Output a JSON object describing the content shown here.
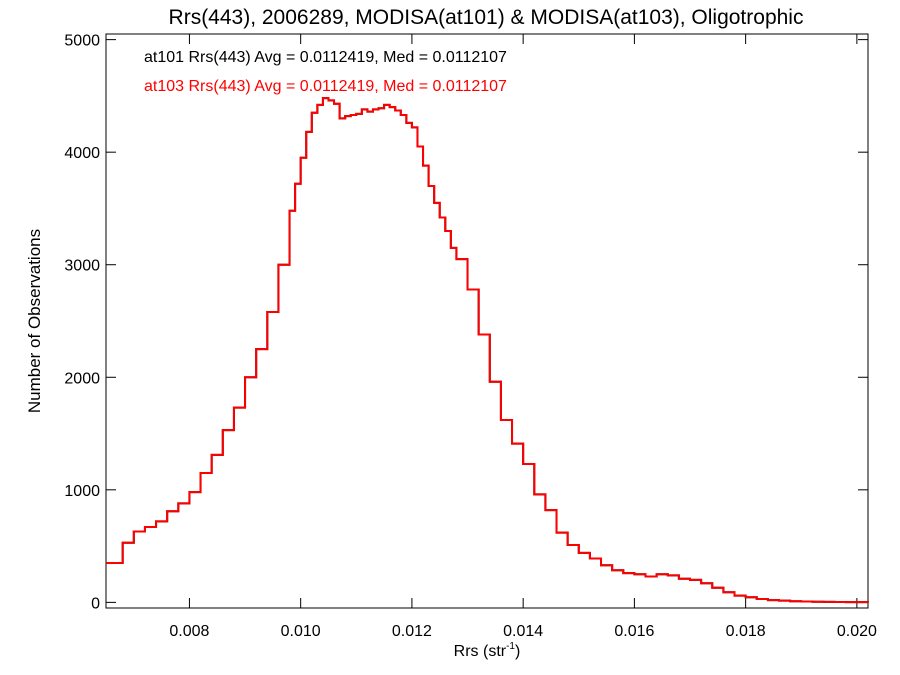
{
  "chart_data": {
    "type": "line",
    "title": "Rrs(443), 2006289, MODISA(at101) & MODISA(at103), Oligotrophic",
    "xlabel": "Rrs (str",
    "xlabel_superscript": "-1",
    "xlabel_close": ")",
    "ylabel": "Number of Observations",
    "xlim": [
      0.0065,
      0.0202
    ],
    "ylim": [
      -50,
      5050
    ],
    "xticks": [
      0.008,
      0.01,
      0.012,
      0.014,
      0.016,
      0.018,
      0.02
    ],
    "xtick_labels": [
      "0.008",
      "0.010",
      "0.012",
      "0.014",
      "0.016",
      "0.018",
      "0.020"
    ],
    "yticks": [
      0,
      1000,
      2000,
      3000,
      4000,
      5000
    ],
    "ytick_labels": [
      "0",
      "1000",
      "2000",
      "3000",
      "4000",
      "5000"
    ],
    "grid": false,
    "annotations": [
      {
        "text": "at101 Rrs(443) Avg = 0.0112419, Med = 0.0112107",
        "color": "#000000"
      },
      {
        "text": "at103 Rrs(443) Avg = 0.0112419, Med = 0.0112107",
        "color": "#ff0000"
      }
    ],
    "series": [
      {
        "color": "#000000",
        "x": [
          0.0065,
          0.0068,
          0.007,
          0.0072,
          0.0074,
          0.0076,
          0.0078,
          0.008,
          0.0082,
          0.0084,
          0.0086,
          0.0088,
          0.009,
          0.0092,
          0.0094,
          0.0096,
          0.0098,
          0.0099,
          0.01,
          0.0101,
          0.0102,
          0.0103,
          0.0104,
          0.0105,
          0.0106,
          0.0107,
          0.0108,
          0.0109,
          0.011,
          0.0111,
          0.0112,
          0.0113,
          0.0114,
          0.0115,
          0.0116,
          0.0117,
          0.0118,
          0.0119,
          0.012,
          0.0121,
          0.0122,
          0.0123,
          0.0124,
          0.0125,
          0.0126,
          0.0127,
          0.0128,
          0.013,
          0.0132,
          0.0134,
          0.0136,
          0.0138,
          0.014,
          0.0142,
          0.0144,
          0.0146,
          0.0148,
          0.015,
          0.0152,
          0.0154,
          0.0156,
          0.0158,
          0.016,
          0.0162,
          0.0164,
          0.0166,
          0.0168,
          0.017,
          0.0172,
          0.0174,
          0.0176,
          0.0178,
          0.018,
          0.0182,
          0.0184,
          0.0186,
          0.0188,
          0.019,
          0.0192,
          0.0194,
          0.0196,
          0.0198,
          0.02,
          0.0202
        ],
        "y": [
          350,
          530,
          630,
          670,
          720,
          810,
          880,
          980,
          1150,
          1310,
          1530,
          1730,
          2000,
          2250,
          2580,
          3000,
          3480,
          3720,
          3950,
          4180,
          4350,
          4420,
          4480,
          4460,
          4430,
          4300,
          4320,
          4330,
          4340,
          4380,
          4360,
          4380,
          4390,
          4420,
          4400,
          4370,
          4330,
          4260,
          4220,
          4050,
          3880,
          3700,
          3550,
          3420,
          3300,
          3150,
          3050,
          2780,
          2380,
          1960,
          1620,
          1410,
          1230,
          960,
          820,
          620,
          510,
          440,
          390,
          330,
          285,
          260,
          250,
          230,
          250,
          240,
          210,
          200,
          170,
          130,
          90,
          60,
          45,
          30,
          20,
          15,
          10,
          8,
          5,
          4,
          3,
          2,
          2,
          1
        ]
      },
      {
        "color": "#ff0000",
        "x": [
          0.0065,
          0.0068,
          0.007,
          0.0072,
          0.0074,
          0.0076,
          0.0078,
          0.008,
          0.0082,
          0.0084,
          0.0086,
          0.0088,
          0.009,
          0.0092,
          0.0094,
          0.0096,
          0.0098,
          0.0099,
          0.01,
          0.0101,
          0.0102,
          0.0103,
          0.0104,
          0.0105,
          0.0106,
          0.0107,
          0.0108,
          0.0109,
          0.011,
          0.0111,
          0.0112,
          0.0113,
          0.0114,
          0.0115,
          0.0116,
          0.0117,
          0.0118,
          0.0119,
          0.012,
          0.0121,
          0.0122,
          0.0123,
          0.0124,
          0.0125,
          0.0126,
          0.0127,
          0.0128,
          0.013,
          0.0132,
          0.0134,
          0.0136,
          0.0138,
          0.014,
          0.0142,
          0.0144,
          0.0146,
          0.0148,
          0.015,
          0.0152,
          0.0154,
          0.0156,
          0.0158,
          0.016,
          0.0162,
          0.0164,
          0.0166,
          0.0168,
          0.017,
          0.0172,
          0.0174,
          0.0176,
          0.0178,
          0.018,
          0.0182,
          0.0184,
          0.0186,
          0.0188,
          0.019,
          0.0192,
          0.0194,
          0.0196,
          0.0198,
          0.02,
          0.0202
        ],
        "y": [
          350,
          530,
          630,
          670,
          720,
          810,
          880,
          980,
          1150,
          1310,
          1530,
          1730,
          2000,
          2250,
          2580,
          3000,
          3480,
          3720,
          3950,
          4180,
          4350,
          4420,
          4480,
          4460,
          4430,
          4300,
          4320,
          4330,
          4340,
          4380,
          4360,
          4380,
          4390,
          4420,
          4400,
          4370,
          4330,
          4260,
          4220,
          4050,
          3880,
          3700,
          3550,
          3420,
          3300,
          3150,
          3050,
          2780,
          2380,
          1960,
          1620,
          1410,
          1230,
          960,
          820,
          620,
          510,
          440,
          390,
          330,
          285,
          260,
          250,
          230,
          250,
          240,
          210,
          200,
          170,
          130,
          90,
          60,
          45,
          30,
          20,
          15,
          10,
          8,
          5,
          4,
          3,
          2,
          2,
          1
        ]
      }
    ]
  }
}
